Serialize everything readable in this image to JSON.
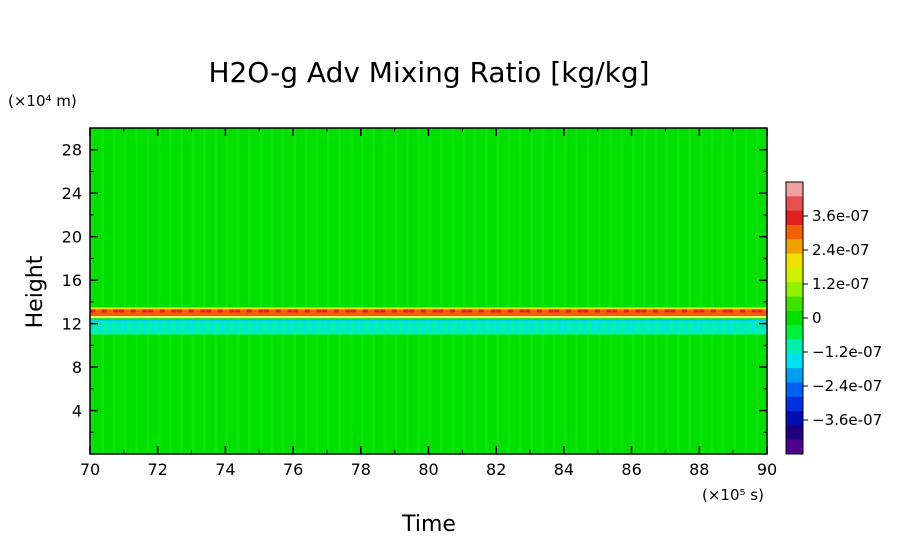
{
  "chart_data": {
    "type": "heatmap",
    "title": "H2O-g Adv Mixing Ratio [kg/kg]",
    "xlabel": "Time",
    "ylabel": "Height",
    "x_unit": "(×10⁵ s)",
    "y_unit": "(×10⁴ m)",
    "xlim": [
      70,
      90
    ],
    "ylim": [
      0,
      30
    ],
    "x_ticks": [
      "70",
      "72",
      "74",
      "76",
      "78",
      "80",
      "82",
      "84",
      "86",
      "88",
      "90"
    ],
    "y_ticks": [
      "4",
      "8",
      "12",
      "16",
      "20",
      "24",
      "28"
    ],
    "background_value": 0,
    "bands": [
      {
        "name": "positive",
        "y_min": 12.6,
        "y_max": 13.4,
        "value": 3.6e-07
      },
      {
        "name": "negative",
        "y_min": 11.0,
        "y_max": 12.4,
        "value": -1.8e-07
      }
    ],
    "colorbar": {
      "range": [
        -4.8e-07,
        4.8e-07
      ],
      "tick_labels": [
        "3.6e-07",
        "2.4e-07",
        "1.2e-07",
        "0",
        "−1.2e-07",
        "−2.4e-07",
        "−3.6e-07"
      ],
      "tick_values": [
        3.6e-07,
        2.4e-07,
        1.2e-07,
        0,
        -1.2e-07,
        -2.4e-07,
        -3.6e-07
      ],
      "colors": [
        "#f0a0a0",
        "#e85050",
        "#e02020",
        "#f06000",
        "#f0a000",
        "#f0e000",
        "#d0f000",
        "#90f000",
        "#40e000",
        "#00e000",
        "#00f040",
        "#00f0b0",
        "#00e0f0",
        "#00a0f0",
        "#0060f0",
        "#0030e0",
        "#0010b0",
        "#200080",
        "#500090"
      ]
    }
  }
}
